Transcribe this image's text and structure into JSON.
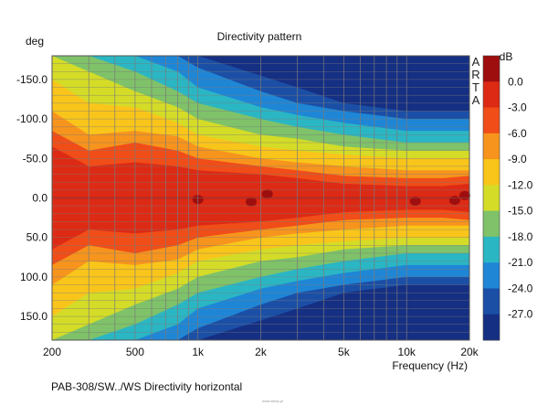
{
  "chart_data": {
    "type": "heatmap",
    "title": "Directivity pattern",
    "ylabel": "deg",
    "xlabel": "Frequency (Hz)",
    "x_scale": "log",
    "xlim": [
      200,
      20000
    ],
    "ylim": [
      -180,
      180
    ],
    "x_ticks": [
      {
        "value": 200,
        "label": "200"
      },
      {
        "value": 500,
        "label": "500"
      },
      {
        "value": 1000,
        "label": "1k"
      },
      {
        "value": 2000,
        "label": "2k"
      },
      {
        "value": 5000,
        "label": "5k"
      },
      {
        "value": 10000,
        "label": "10k"
      },
      {
        "value": 20000,
        "label": "20k"
      }
    ],
    "y_ticks": [
      {
        "value": -150,
        "label": "-150.0"
      },
      {
        "value": -100,
        "label": "-100.0"
      },
      {
        "value": -50,
        "label": "-50.0"
      },
      {
        "value": 0,
        "label": "0.0"
      },
      {
        "value": 50,
        "label": "50.0"
      },
      {
        "value": 100,
        "label": "100.0"
      },
      {
        "value": 150,
        "label": "150.0"
      }
    ],
    "colorbar": {
      "unit": "dB",
      "ticks": [
        "0.0",
        "-3.0",
        "-6.0",
        "-9.0",
        "-12.0",
        "-15.0",
        "-18.0",
        "-21.0",
        "-24.0",
        "-27.0"
      ],
      "levels": [
        {
          "range": "> 0.0",
          "color": "#9e0e0e"
        },
        {
          "range": "0 to -3",
          "color": "#dd2a14"
        },
        {
          "range": "-3 to -6",
          "color": "#f04d18"
        },
        {
          "range": "-6 to -9",
          "color": "#f7941d"
        },
        {
          "range": "-9 to -12",
          "color": "#f9c51a"
        },
        {
          "range": "-12 to -15",
          "color": "#d4dc27"
        },
        {
          "range": "-15 to -18",
          "color": "#7fc269"
        },
        {
          "range": "-18 to -21",
          "color": "#2bb6c4"
        },
        {
          "range": "-21 to -24",
          "color": "#1f86d6"
        },
        {
          "range": "-24 to -27",
          "color": "#1b4fa6"
        },
        {
          "range": "< -27",
          "color": "#152f83"
        }
      ]
    },
    "beamwidth_contours": [
      {
        "level_db": -3,
        "freq_hz": [
          200,
          300,
          500,
          800,
          1000,
          2000,
          3000,
          5000,
          10000,
          15000,
          20000
        ],
        "angle_deg": [
          65,
          40,
          45,
          40,
          35,
          30,
          25,
          18,
          15,
          15,
          18
        ]
      },
      {
        "level_db": -6,
        "freq_hz": [
          200,
          300,
          500,
          800,
          1000,
          2000,
          3000,
          5000,
          10000,
          15000,
          20000
        ],
        "angle_deg": [
          85,
          60,
          70,
          60,
          50,
          40,
          35,
          28,
          25,
          25,
          28
        ]
      },
      {
        "level_db": -9,
        "freq_hz": [
          200,
          300,
          500,
          800,
          1000,
          2000,
          3000,
          5000,
          10000,
          15000,
          20000
        ],
        "angle_deg": [
          110,
          80,
          85,
          78,
          65,
          50,
          45,
          40,
          35,
          35,
          35
        ]
      },
      {
        "level_db": -12,
        "freq_hz": [
          200,
          300,
          500,
          800,
          1000,
          2000,
          3000,
          5000,
          10000,
          15000,
          20000
        ],
        "angle_deg": [
          150,
          120,
          115,
          95,
          80,
          65,
          60,
          55,
          50,
          50,
          50
        ]
      },
      {
        "level_db": -15,
        "freq_hz": [
          200,
          300,
          500,
          800,
          1000,
          2000,
          3000,
          5000,
          10000,
          15000,
          20000
        ],
        "angle_deg": [
          180,
          160,
          135,
          115,
          100,
          80,
          75,
          65,
          60,
          60,
          60
        ]
      },
      {
        "level_db": -18,
        "freq_hz": [
          200,
          300,
          500,
          800,
          1000,
          2000,
          3000,
          5000,
          10000,
          15000,
          20000
        ],
        "angle_deg": [
          180,
          180,
          160,
          135,
          120,
          100,
          90,
          80,
          70,
          70,
          70
        ]
      },
      {
        "level_db": -21,
        "freq_hz": [
          200,
          300,
          500,
          800,
          1000,
          2000,
          3000,
          5000,
          10000,
          15000,
          20000
        ],
        "angle_deg": [
          180,
          180,
          180,
          160,
          140,
          115,
          105,
          95,
          85,
          85,
          85
        ]
      },
      {
        "level_db": -24,
        "freq_hz": [
          200,
          300,
          500,
          800,
          1000,
          2000,
          3000,
          5000,
          10000,
          15000,
          20000
        ],
        "angle_deg": [
          180,
          180,
          180,
          180,
          165,
          135,
          120,
          110,
          100,
          100,
          100
        ]
      },
      {
        "level_db": -27,
        "freq_hz": [
          200,
          300,
          500,
          800,
          1000,
          2000,
          3000,
          5000,
          10000,
          15000,
          20000
        ],
        "angle_deg": [
          180,
          180,
          180,
          180,
          180,
          155,
          140,
          120,
          110,
          110,
          110
        ]
      }
    ],
    "peak_spots": [
      {
        "freq_hz": 1000,
        "angle_deg": 2
      },
      {
        "freq_hz": 1800,
        "angle_deg": 5
      },
      {
        "freq_hz": 2150,
        "angle_deg": -5
      },
      {
        "freq_hz": 11000,
        "angle_deg": 4
      },
      {
        "freq_hz": 17000,
        "angle_deg": 3
      },
      {
        "freq_hz": 19000,
        "angle_deg": -3
      }
    ],
    "watermark": "ARTA",
    "grid": true,
    "legend_position": "right"
  },
  "caption": "PAB-308/SW../WS  Directivity horizontal",
  "credit": "www.sklep.pl"
}
